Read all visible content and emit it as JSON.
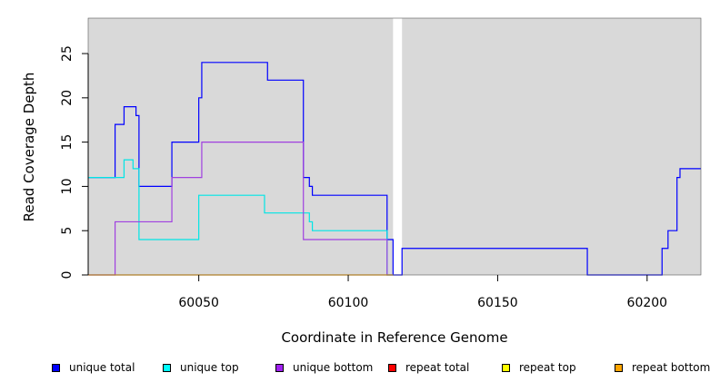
{
  "chart_data": {
    "type": "line",
    "xlabel": "Coordinate in Reference Genome",
    "ylabel": "Read Coverage Depth",
    "xlim": [
      60013,
      60218
    ],
    "ylim": [
      0,
      29
    ],
    "xticks": [
      60050,
      60100,
      60150,
      60200
    ],
    "yticks": [
      0,
      5,
      10,
      15,
      20,
      25
    ],
    "shaded_regions": [
      [
        60013,
        60115
      ],
      [
        60118,
        60218
      ]
    ],
    "shade_color": "#d9d9d9",
    "series": [
      {
        "name": "unique total",
        "color": "#0000ff",
        "points": [
          [
            60013,
            11
          ],
          [
            60022,
            11
          ],
          [
            60022,
            17
          ],
          [
            60025,
            17
          ],
          [
            60025,
            19
          ],
          [
            60029,
            19
          ],
          [
            60029,
            18
          ],
          [
            60030,
            18
          ],
          [
            60030,
            10
          ],
          [
            60041,
            10
          ],
          [
            60041,
            15
          ],
          [
            60050,
            15
          ],
          [
            60050,
            20
          ],
          [
            60051,
            20
          ],
          [
            60051,
            24
          ],
          [
            60073,
            24
          ],
          [
            60073,
            22
          ],
          [
            60085,
            22
          ],
          [
            60085,
            11
          ],
          [
            60087,
            11
          ],
          [
            60087,
            10
          ],
          [
            60088,
            10
          ],
          [
            60088,
            9
          ],
          [
            60113,
            9
          ],
          [
            60113,
            4
          ],
          [
            60115,
            4
          ],
          [
            60115,
            0
          ],
          [
            60118,
            0
          ],
          [
            60118,
            3
          ],
          [
            60180,
            3
          ],
          [
            60180,
            0
          ],
          [
            60205,
            0
          ],
          [
            60205,
            3
          ],
          [
            60207,
            3
          ],
          [
            60207,
            5
          ],
          [
            60210,
            5
          ],
          [
            60210,
            11
          ],
          [
            60211,
            11
          ],
          [
            60211,
            12
          ],
          [
            60218,
            12
          ]
        ]
      },
      {
        "name": "unique top",
        "color": "#00e5e5",
        "points": [
          [
            60013,
            11
          ],
          [
            60025,
            11
          ],
          [
            60025,
            13
          ],
          [
            60028,
            13
          ],
          [
            60028,
            12
          ],
          [
            60030,
            12
          ],
          [
            60030,
            4
          ],
          [
            60050,
            4
          ],
          [
            60050,
            9
          ],
          [
            60072,
            9
          ],
          [
            60072,
            7
          ],
          [
            60087,
            7
          ],
          [
            60087,
            6
          ],
          [
            60088,
            6
          ],
          [
            60088,
            5
          ],
          [
            60113,
            5
          ],
          [
            60113,
            0
          ],
          [
            60115,
            0
          ]
        ]
      },
      {
        "name": "unique bottom",
        "color": "#a040e0",
        "points": [
          [
            60013,
            0
          ],
          [
            60022,
            0
          ],
          [
            60022,
            6
          ],
          [
            60041,
            6
          ],
          [
            60041,
            11
          ],
          [
            60051,
            11
          ],
          [
            60051,
            15
          ],
          [
            60085,
            15
          ],
          [
            60085,
            4
          ],
          [
            60113,
            4
          ],
          [
            60113,
            0
          ],
          [
            60115,
            0
          ]
        ]
      },
      {
        "name": "repeat total",
        "color": "#ff0000",
        "points": []
      },
      {
        "name": "repeat top",
        "color": "#ffff00",
        "points": []
      },
      {
        "name": "repeat bottom",
        "color": "#ffa500",
        "points": [
          [
            60013,
            0
          ],
          [
            60115,
            0
          ]
        ]
      }
    ],
    "legend_position": "bottom"
  },
  "legend": [
    {
      "label": "unique total",
      "color": "#0000ff"
    },
    {
      "label": "unique top",
      "color": "#00ffff"
    },
    {
      "label": "unique bottom",
      "color": "#a020f0"
    },
    {
      "label": "repeat total",
      "color": "#ff0000"
    },
    {
      "label": "repeat top",
      "color": "#ffff00"
    },
    {
      "label": "repeat bottom",
      "color": "#ffa500"
    }
  ]
}
